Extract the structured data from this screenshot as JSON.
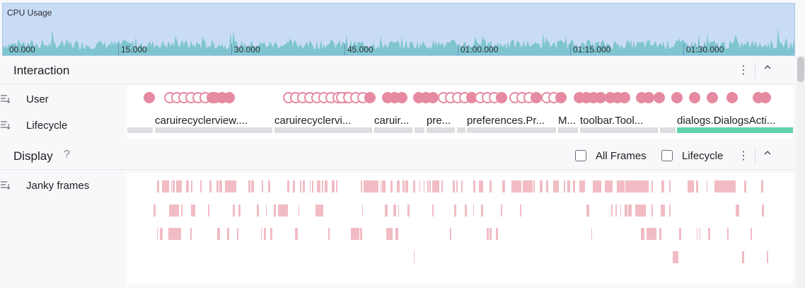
{
  "cpu": {
    "title": "CPU Usage",
    "ticks": [
      "00.000",
      "15.000",
      "30.000",
      "45.000",
      "01:00.000",
      "01:15.000",
      "01:30.000"
    ],
    "colors": {
      "bg": "#c9dcf5",
      "wave": "#7ec5cf"
    }
  },
  "interaction": {
    "title": "Interaction",
    "more_icon": "more-vertical-icon",
    "collapse_icon": "chevron-up-icon",
    "user_label": "User",
    "lifecycle_label": "Lifecycle",
    "lifecycle_segments": [
      {
        "label": "caruirecyclerview....",
        "active": false
      },
      {
        "label": "caruirecyclervi...",
        "active": false
      },
      {
        "label": "caruir...",
        "active": false
      },
      {
        "label": "pre...",
        "active": false
      },
      {
        "label": "preferences.Pr...",
        "active": false
      },
      {
        "label": "M...",
        "active": false
      },
      {
        "label": "toolbar.Tool...",
        "active": false
      },
      {
        "label": "dialogs.DialogsActi...",
        "active": true
      }
    ]
  },
  "display": {
    "title": "Display",
    "help_icon": "help-icon",
    "all_frames_label": "All Frames",
    "lifecycle_checkbox_label": "Lifecycle",
    "all_frames_checked": false,
    "lifecycle_checked": false,
    "janky_label": "Janky frames"
  },
  "colors": {
    "jank": "#f1bcc4",
    "dot": "#e58aa1",
    "active_segment": "#5fd3aa"
  }
}
